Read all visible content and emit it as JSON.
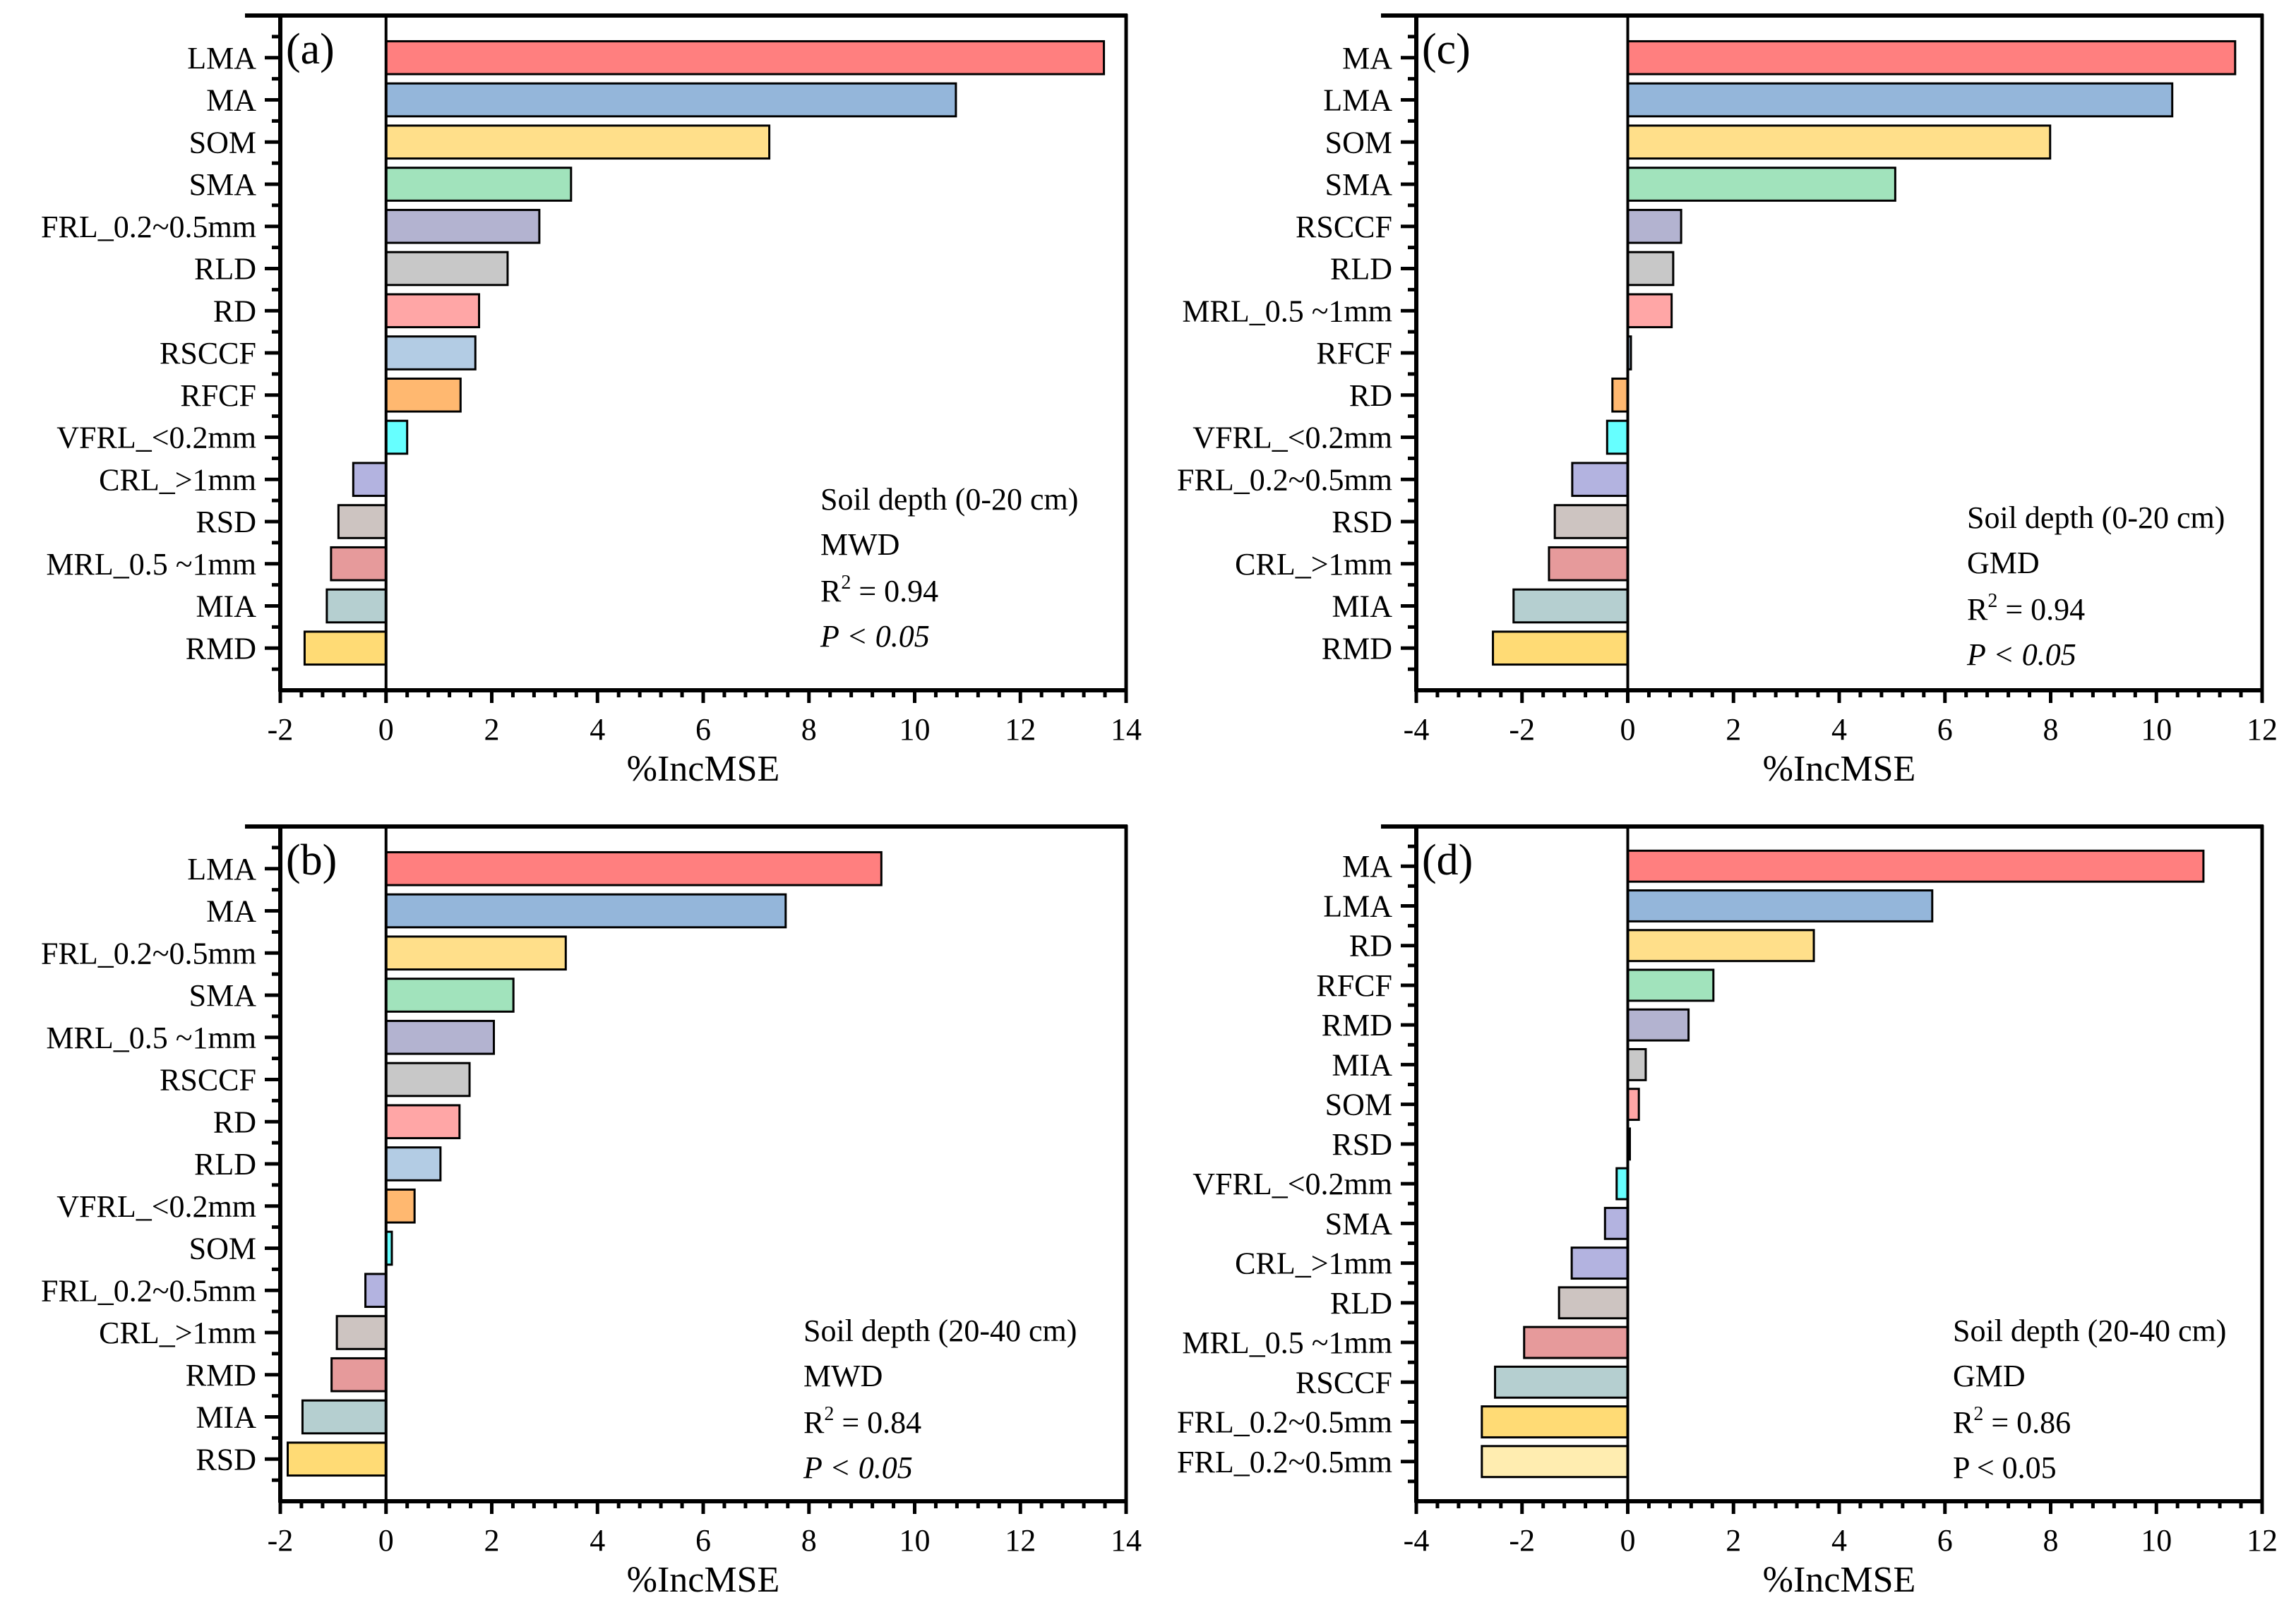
{
  "chart_data": [
    {
      "type": "bar",
      "orientation": "horizontal",
      "panel": "(a)",
      "xlabel": "%IncMSE",
      "ylabel": "",
      "xlim": [
        -2,
        14
      ],
      "xticks": [
        -2,
        0,
        2,
        4,
        6,
        8,
        10,
        12,
        14
      ],
      "grid": false,
      "categories": [
        "LMA",
        "MA",
        "SOM",
        "SMA",
        "FRL_0.2~0.5mm",
        "RLD",
        "RD",
        "RSCCF",
        "RFCF",
        "VFRL_<0.2mm",
        "CRL_>1mm",
        "RSD",
        "MRL_0.5 ~1mm",
        "MIA",
        "RMD"
      ],
      "values": [
        13.58,
        10.78,
        7.25,
        3.5,
        2.9,
        2.3,
        1.76,
        1.69,
        1.41,
        0.4,
        -0.62,
        -0.9,
        -1.04,
        -1.12,
        -1.54
      ],
      "colors": [
        "#FF7F7F",
        "#94B6DA",
        "#FFDF8A",
        "#A1E3BC",
        "#B3B3D0",
        "#C8C8C8",
        "#FFA6A6",
        "#B3CCE4",
        "#FFB870",
        "#66FFFF",
        "#B3B3E0",
        "#CDC4C1",
        "#E69A9B",
        "#B5CFD0",
        "#FFDB75"
      ],
      "annotation": {
        "depth": "Soil depth (0-20 cm)",
        "index": "MWD",
        "r2_prefix": "R",
        "r2_sup": "2",
        "r2_value": " = 0.94",
        "p_text": "P < 0.05",
        "p_italic": true
      }
    },
    {
      "type": "bar",
      "orientation": "horizontal",
      "panel": "(c)",
      "xlabel": "%IncMSE",
      "ylabel": "",
      "xlim": [
        -4,
        12
      ],
      "xticks": [
        -4,
        -2,
        0,
        2,
        4,
        6,
        8,
        10,
        12
      ],
      "grid": false,
      "categories": [
        "MA",
        "LMA",
        "SOM",
        "SMA",
        "RSCCF",
        "RLD",
        "MRL_0.5 ~1mm",
        "RFCF",
        "RD",
        "VFRL_<0.2mm",
        "FRL_0.2~0.5mm",
        "RSD",
        "CRL_>1mm",
        "MIA",
        "RMD"
      ],
      "values": [
        11.49,
        10.3,
        7.99,
        5.06,
        1.01,
        0.86,
        0.83,
        0.06,
        -0.29,
        -0.39,
        -1.05,
        -1.38,
        -1.49,
        -2.16,
        -2.55
      ],
      "colors": [
        "#FF7F7F",
        "#94B6DA",
        "#FFDF8A",
        "#A1E3BC",
        "#B3B3D0",
        "#C8C8C8",
        "#FFA6A6",
        "#B3CCE4",
        "#FFB870",
        "#66FFFF",
        "#B3B3E0",
        "#CDC4C1",
        "#E69A9B",
        "#B5CFD0",
        "#FFDB75"
      ],
      "annotation": {
        "depth": "Soil depth (0-20 cm)",
        "index": "GMD",
        "r2_prefix": "R",
        "r2_sup": "2",
        "r2_value": " = 0.94",
        "p_text": "P < 0.05",
        "p_italic": true
      }
    },
    {
      "type": "bar",
      "orientation": "horizontal",
      "panel": "(b)",
      "xlabel": "%IncMSE",
      "ylabel": "",
      "xlim": [
        -2,
        14
      ],
      "xticks": [
        -2,
        0,
        2,
        4,
        6,
        8,
        10,
        12,
        14
      ],
      "grid": false,
      "categories": [
        "LMA",
        "MA",
        "FRL_0.2~0.5mm",
        "SMA",
        "MRL_0.5 ~1mm",
        "RSCCF",
        "RD",
        "RLD",
        "VFRL_<0.2mm",
        "SOM",
        "FRL_0.2~0.5mm",
        "CRL_>1mm",
        "RMD",
        "MIA",
        "RSD"
      ],
      "values": [
        9.37,
        7.56,
        3.4,
        2.41,
        2.04,
        1.58,
        1.39,
        1.03,
        0.54,
        0.11,
        -0.39,
        -0.93,
        -1.03,
        -1.58,
        -1.86
      ],
      "colors": [
        "#FF7F7F",
        "#94B6DA",
        "#FFDF8A",
        "#A1E3BC",
        "#B3B3D0",
        "#C8C8C8",
        "#FFA6A6",
        "#B3CCE4",
        "#FFB870",
        "#66FFFF",
        "#B3B3E0",
        "#CDC4C1",
        "#E69A9B",
        "#B5CFD0",
        "#FFDB75"
      ],
      "annotation": {
        "depth": "Soil depth (20-40 cm)",
        "index": "MWD",
        "r2_prefix": "R",
        "r2_sup": "2",
        "r2_value": " = 0.84",
        "p_text": "P < 0.05",
        "p_italic": true
      }
    },
    {
      "type": "bar",
      "orientation": "horizontal",
      "panel": "(d)",
      "xlabel": "%IncMSE",
      "ylabel": "",
      "xlim": [
        -4,
        12
      ],
      "xticks": [
        -4,
        -2,
        0,
        2,
        4,
        6,
        8,
        10,
        12
      ],
      "grid": false,
      "categories": [
        "MA",
        "LMA",
        "RD",
        "RFCF",
        "RMD",
        "MIA",
        "SOM",
        "RSD",
        "VFRL_<0.2mm",
        "SMA",
        "CRL_>1mm",
        "RLD",
        "MRL_0.5 ~1mm",
        "RSCCF",
        "FRL_0.2~0.5mm",
        "FRL_0.2~0.5mm"
      ],
      "values": [
        10.89,
        5.76,
        3.52,
        1.62,
        1.15,
        0.34,
        0.21,
        0.04,
        -0.21,
        -0.43,
        -1.06,
        -1.3,
        -1.96,
        -2.51,
        -2.76,
        -2.76
      ],
      "colors": [
        "#FF7F7F",
        "#94B6DA",
        "#FFDF8A",
        "#A1E3BC",
        "#B3B3D0",
        "#C8C8C8",
        "#FFA6A6",
        "#B3CCE4",
        "#66FFFF",
        "#B3B3E0",
        "#B3B3E0",
        "#CDC4C1",
        "#E69A9B",
        "#B5CFD0",
        "#FFDB75",
        "#FFEDB0"
      ],
      "annotation": {
        "depth": "Soil depth (20-40 cm)",
        "index": "GMD",
        "r2_prefix": "R",
        "r2_sup": "2",
        "r2_value": " = 0.86",
        "p_text": "P < 0.05",
        "p_italic": false
      }
    }
  ]
}
